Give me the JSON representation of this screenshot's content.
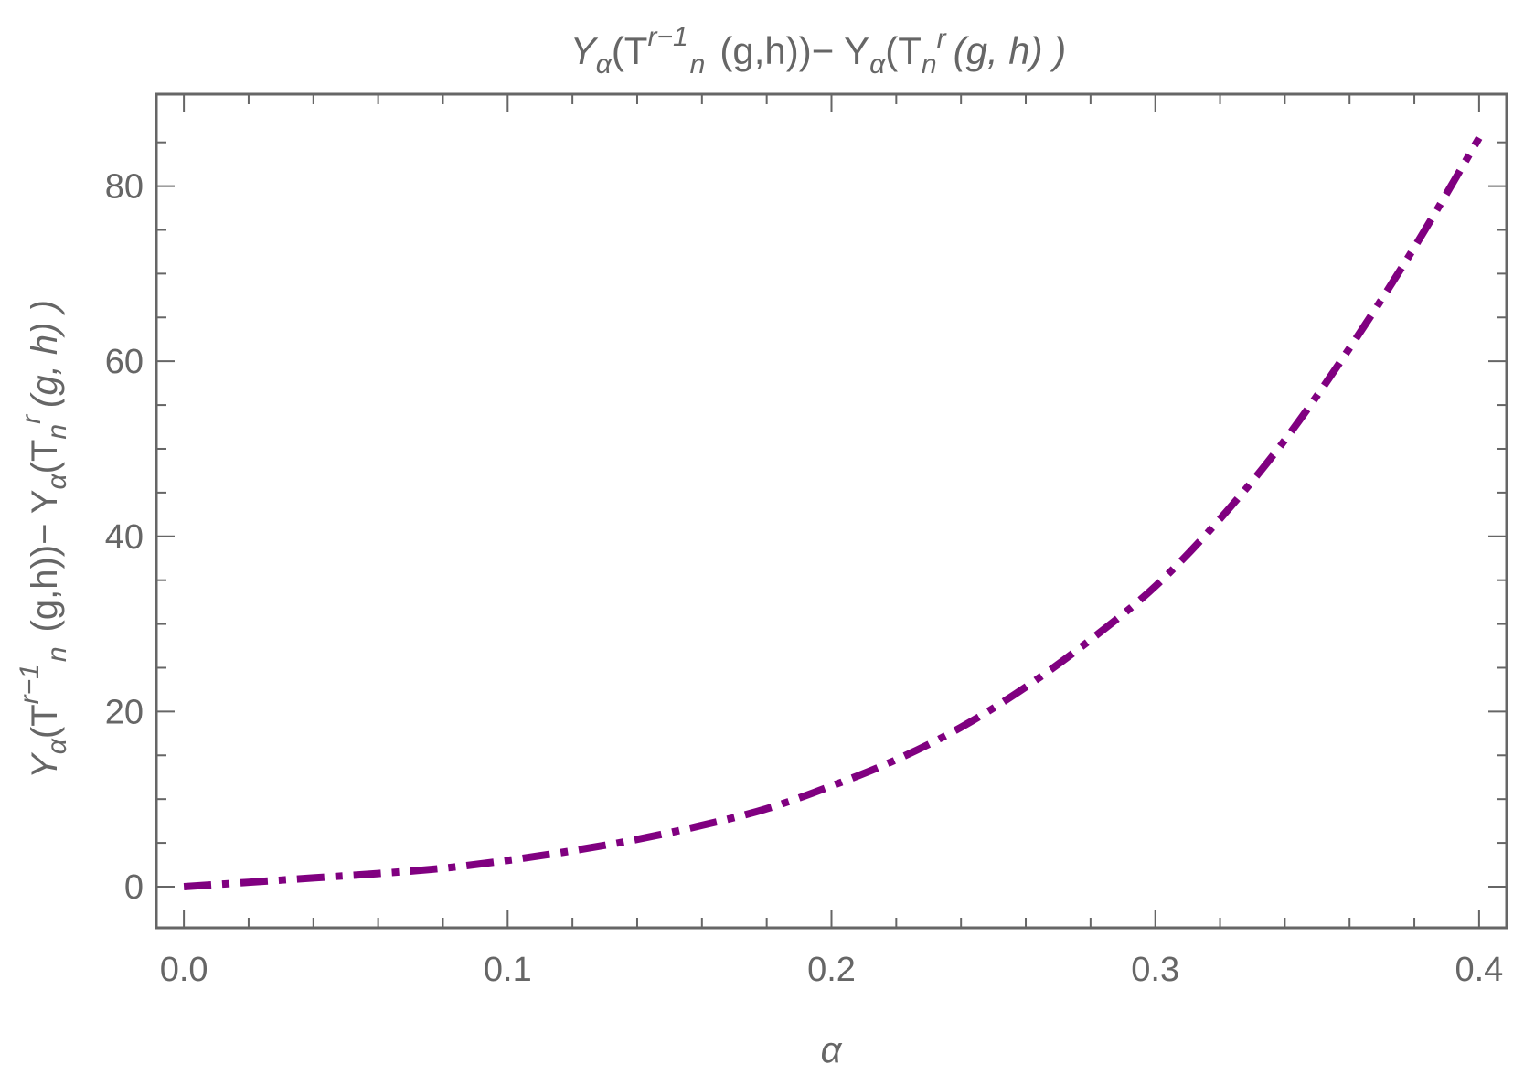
{
  "chart_data": {
    "type": "line",
    "title": {
      "p1": "Y",
      "p2": "α",
      "p3": "(T",
      "p4": "r−1",
      "p5": "n",
      "p6": "(g,h))− Y",
      "p7": "α",
      "p8": "(T",
      "p9": "n",
      "p10": "r",
      "p11": "(g, h) )"
    },
    "xlabel": "α",
    "ylabel": {
      "p1": "Y",
      "p2": "α",
      "p3": "(T",
      "p4": "r−1",
      "p5": "n",
      "p6": "(g,h))− Y",
      "p7": "α",
      "p8": "(T",
      "p9": "n",
      "p10": "r",
      "p11": "(g, h) )"
    },
    "xlim": [
      -0.0085,
      0.4085
    ],
    "ylim": [
      -4.7,
      90.5
    ],
    "x_ticks": [
      "0.0",
      "0.1",
      "0.2",
      "0.3",
      "0.4"
    ],
    "y_ticks": [
      "0",
      "20",
      "40",
      "60",
      "80"
    ],
    "x_tick_values": [
      0,
      0.1,
      0.2,
      0.3,
      0.4
    ],
    "y_tick_values": [
      0,
      20,
      40,
      60,
      80
    ],
    "grid": false,
    "frame": true,
    "series": [
      {
        "style": "dot-dashed",
        "color": "#800080",
        "x": [
          0,
          0.02,
          0.04,
          0.06,
          0.08,
          0.1,
          0.12,
          0.14,
          0.16,
          0.18,
          0.2,
          0.22,
          0.24,
          0.26,
          0.28,
          0.3,
          0.32,
          0.34,
          0.36,
          0.38,
          0.4
        ],
        "y": [
          0,
          0.5,
          1.0,
          1.5,
          2.1,
          3.0,
          4.1,
          5.4,
          7.0,
          8.9,
          11.5,
          14.5,
          18.2,
          22.8,
          28.2,
          34.3,
          42.0,
          51.0,
          61.5,
          73.0,
          85.5
        ]
      }
    ]
  }
}
